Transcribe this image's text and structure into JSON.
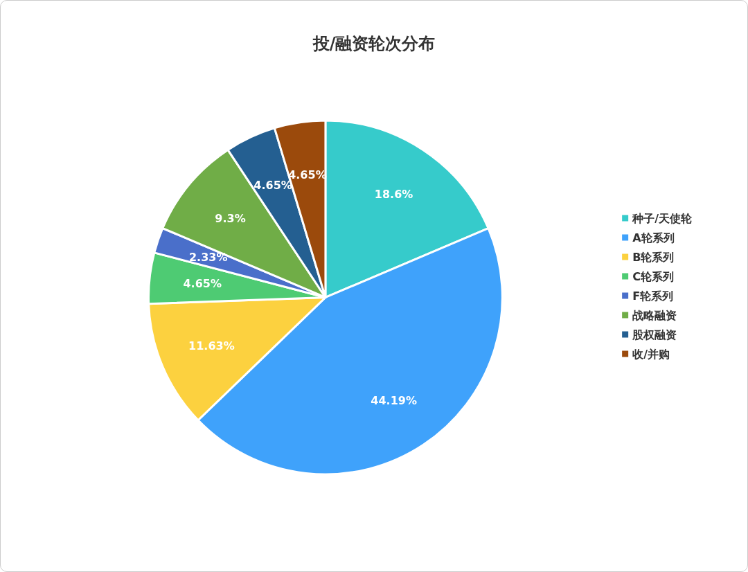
{
  "chart_data": {
    "type": "pie",
    "title": "投/融资轮次分布",
    "categories": [
      "种子/天使轮",
      "A轮系列",
      "B轮系列",
      "C轮系列",
      "F轮系列",
      "战略融资",
      "股权融资",
      "收/并购"
    ],
    "values": [
      18.6,
      44.19,
      11.63,
      4.65,
      2.33,
      9.3,
      4.65,
      4.65
    ],
    "colors": [
      "#36cbcb",
      "#3fa2fb",
      "#fcd13f",
      "#4ecb73",
      "#4a6fca",
      "#70ad47",
      "#245f91",
      "#9b4a0c"
    ],
    "value_labels": [
      "18.6%",
      "44.19%",
      "11.63%",
      "4.65%",
      "2.33%",
      "9.3%",
      "4.65%",
      "4.65%"
    ],
    "legend": "right"
  }
}
